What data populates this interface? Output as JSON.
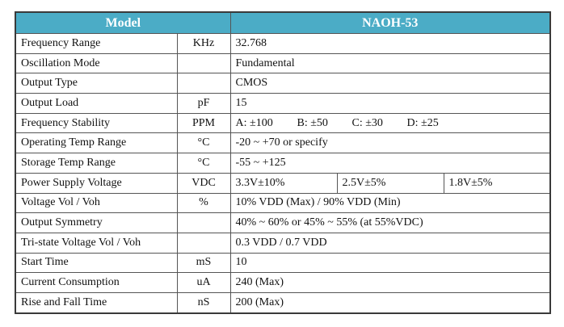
{
  "table": {
    "header": {
      "model": "Model",
      "product": "NAOH-53"
    },
    "rows": [
      {
        "parameter": "Frequency Range",
        "unit": "KHz",
        "value": "32.768"
      },
      {
        "parameter": "Oscillation Mode",
        "unit": null,
        "value": "Fundamental"
      },
      {
        "parameter": "Output Type",
        "unit": null,
        "value": "CMOS"
      },
      {
        "parameter": "Output Load",
        "unit": "pF",
        "value": "15"
      },
      {
        "parameter": "Frequency Stability",
        "unit": "PPM",
        "options": [
          "A: ±100",
          "B: ±50",
          "C: ±30",
          "D: ±25"
        ]
      },
      {
        "parameter": "Operating Temp Range",
        "unit": "°C",
        "value": "-20 ~ +70 or specify"
      },
      {
        "parameter": "Storage Temp Range",
        "unit": "°C",
        "value": "-55 ~ +125"
      },
      {
        "parameter": "Power Supply Voltage",
        "unit": "VDC",
        "cells": [
          "3.3V±10%",
          "2.5V±5%",
          "1.8V±5%"
        ]
      },
      {
        "parameter": "Voltage Vol / Voh",
        "unit": "%",
        "value": "10% VDD (Max) / 90% VDD (Min)"
      },
      {
        "parameter": "Output Symmetry",
        "unit": null,
        "value": "40% ~ 60% or 45% ~ 55% (at 55%VDC)"
      },
      {
        "parameter": "Tri-state Voltage Vol / Voh",
        "unit": null,
        "value": "0.3 VDD / 0.7 VDD"
      },
      {
        "parameter": "Start Time",
        "unit": "mS",
        "value": "10"
      },
      {
        "parameter": "Current Consumption",
        "unit": "uA",
        "value": "240 (Max)"
      },
      {
        "parameter": "Rise and Fall Time",
        "unit": "nS",
        "value": "200 (Max)"
      }
    ]
  }
}
